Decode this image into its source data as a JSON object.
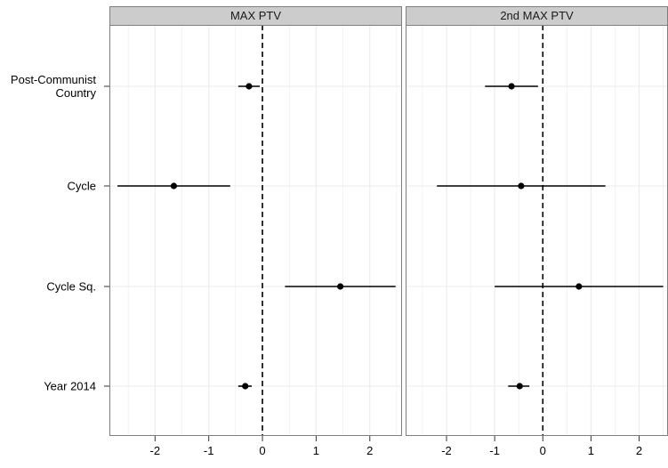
{
  "chart_data": {
    "type": "scatter",
    "subtype": "coefficient-plot",
    "facets": [
      "MAX PTV",
      "2nd MAX PTV"
    ],
    "categories": [
      "Post-Communist\nCountry",
      "Cycle",
      "Cycle Sq.",
      "Year 2014"
    ],
    "xlim": [
      -2.85,
      2.6
    ],
    "x_ticks": [
      -2,
      -1,
      0,
      1,
      2
    ],
    "x_tick_labels": [
      "-2",
      "-1",
      "0",
      "1",
      "2"
    ],
    "reference_line_x": 0,
    "grid": true,
    "series": [
      {
        "facet": "MAX PTV",
        "estimates": [
          -0.25,
          -1.65,
          1.45,
          -0.32
        ],
        "lower": [
          -0.45,
          -2.7,
          0.42,
          -0.45
        ],
        "upper": [
          -0.05,
          -0.6,
          2.48,
          -0.2
        ]
      },
      {
        "facet": "2nd MAX PTV",
        "estimates": [
          -0.65,
          -0.45,
          0.75,
          -0.48
        ],
        "lower": [
          -1.2,
          -2.2,
          -1.0,
          -0.72
        ],
        "upper": [
          -0.1,
          1.3,
          2.5,
          -0.28
        ]
      }
    ],
    "colors": {
      "panel_background": "#ffffff",
      "panel_border": "#7f7f7f",
      "strip_fill": "#cccccc",
      "grid": "#ebebeb",
      "point": "#000000",
      "reference_line": "#000000"
    }
  }
}
